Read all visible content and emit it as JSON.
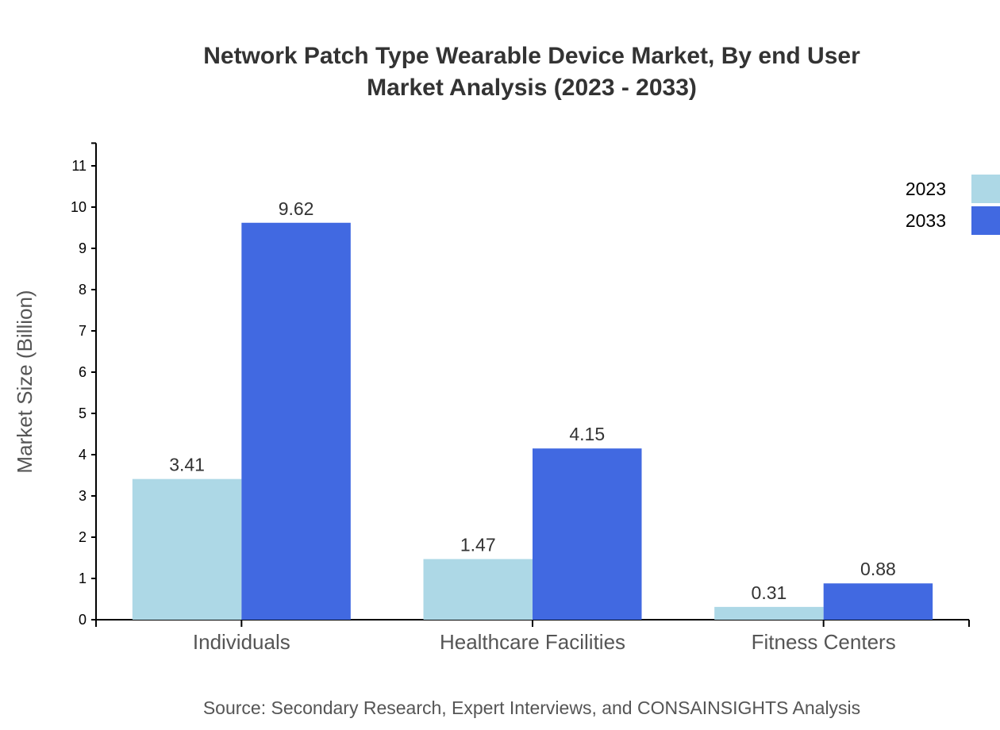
{
  "chart_data": {
    "type": "bar",
    "title_lines": [
      "Network Patch Type Wearable Device Market, By end User",
      "Market Analysis (2023 - 2033)"
    ],
    "ylabel": "Market Size (Billion)",
    "xlabel": "",
    "categories": [
      "Individuals",
      "Healthcare Facilities",
      "Fitness Centers"
    ],
    "series": [
      {
        "name": "2023",
        "values": [
          3.41,
          1.47,
          0.31
        ],
        "color": "#add8e6"
      },
      {
        "name": "2033",
        "values": [
          9.62,
          4.15,
          0.88
        ],
        "color": "#4169e1"
      }
    ],
    "ylim": [
      0,
      11.55
    ],
    "yticks": [
      0,
      1,
      2,
      3,
      4,
      5,
      6,
      7,
      8,
      9,
      10,
      11
    ],
    "grid": false,
    "legend_placement": "top-right",
    "source": "Source: Secondary Research, Expert Interviews, and CONSAINSIGHTS Analysis"
  }
}
